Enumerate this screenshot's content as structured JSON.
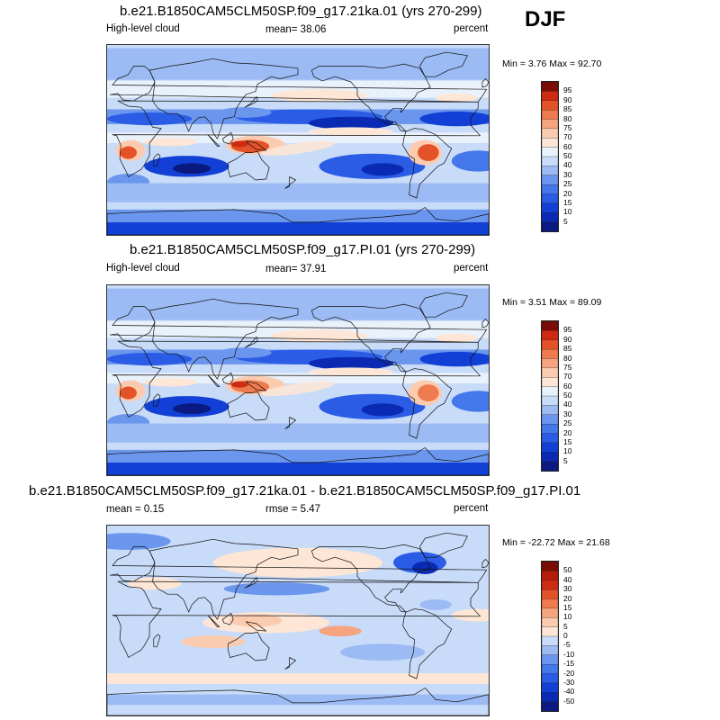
{
  "season": "DJF",
  "panels": [
    {
      "title": "b.e21.B1850CAM5CLM50SP.f09_g17.21ka.01 (yrs 270-299)",
      "left_label": "High-level cloud",
      "stat_label": "mean=  38.06",
      "units": "percent",
      "minmax": "Min =   3.76 Max =  92.70",
      "colorbar": [
        "95",
        "90",
        "85",
        "80",
        "75",
        "70",
        "60",
        "50",
        "40",
        "30",
        "25",
        "20",
        "15",
        "10",
        "5"
      ]
    },
    {
      "title": "b.e21.B1850CAM5CLM50SP.f09_g17.PI.01 (yrs 270-299)",
      "left_label": "High-level cloud",
      "stat_label": "mean=  37.91",
      "units": "percent",
      "minmax": "Min =   3.51 Max =  89.09",
      "colorbar": [
        "95",
        "90",
        "85",
        "80",
        "75",
        "70",
        "60",
        "50",
        "40",
        "30",
        "25",
        "20",
        "15",
        "10",
        "5"
      ]
    },
    {
      "title": "b.e21.B1850CAM5CLM50SP.f09_g17.21ka.01 - b.e21.B1850CAM5CLM50SP.f09_g17.PI.01",
      "left_label": "mean =   0.15",
      "stat_label": "rmse =   5.47",
      "units": "percent",
      "minmax": "Min = -22.72 Max =  21.68",
      "colorbar": [
        "50",
        "40",
        "30",
        "20",
        "15",
        "10",
        "5",
        "0",
        "-5",
        "-10",
        "-15",
        "-20",
        "-30",
        "-40",
        "-50"
      ]
    }
  ],
  "colors": {
    "abs": [
      "#0a1a80",
      "#0b2ab4",
      "#1240d6",
      "#2a5ce6",
      "#4478ea",
      "#6a96ee",
      "#9cbaf3",
      "#c8dbf8",
      "#e9f1fb",
      "#fde6d6",
      "#fbcbb0",
      "#f6a47f",
      "#ef7a4f",
      "#e4522a",
      "#cf2b12",
      "#7a0c05"
    ],
    "diff": [
      "#0a1a80",
      "#0b2ab4",
      "#1240d6",
      "#2a5ce6",
      "#4478ea",
      "#6a96ee",
      "#9cbaf3",
      "#c8dbf8",
      "#fde6d6",
      "#fbcbb0",
      "#f6a47f",
      "#ef7a4f",
      "#e4522a",
      "#cf2b12",
      "#b31d0a",
      "#7a0c05"
    ]
  }
}
